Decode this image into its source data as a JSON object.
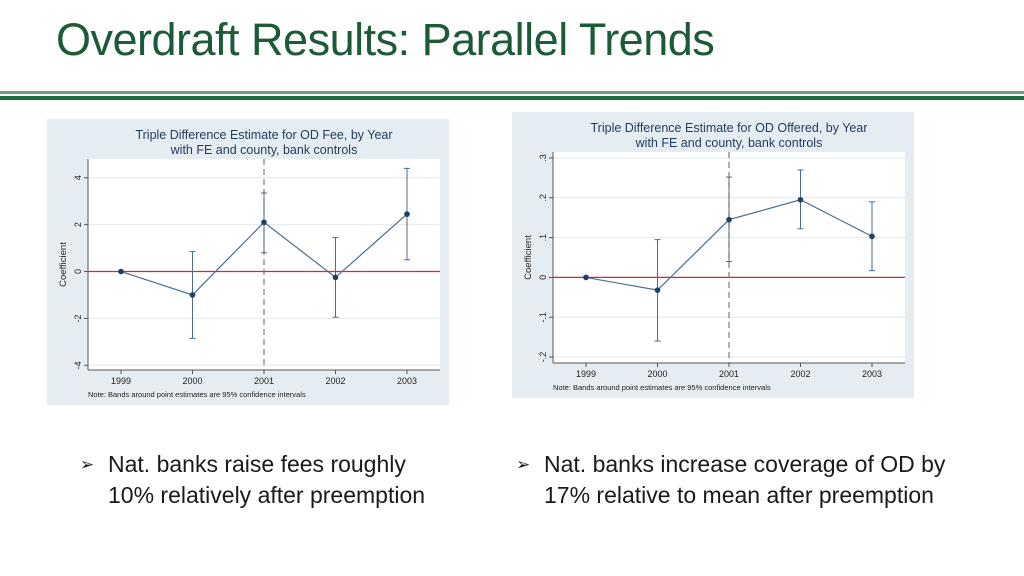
{
  "slide": {
    "title": "Overdraft Results: Parallel Trends"
  },
  "bullets": [
    {
      "marker": "➢",
      "lines": [
        "Nat. banks raise fees roughly",
        "10% relatively after preemption"
      ]
    },
    {
      "marker": "➢",
      "lines": [
        "Nat. banks increase coverage of OD by",
        "17% relative to mean after preemption"
      ]
    }
  ],
  "chart_data": [
    {
      "type": "scatter",
      "title": "Triple Difference Estimate for OD Fee, by Year",
      "subtitle": "with FE and county, bank controls",
      "xlabel": "",
      "ylabel": "Coefficient",
      "x": [
        "1999",
        "2000",
        "2001",
        "2002",
        "2003"
      ],
      "yticks": [
        "4",
        "2",
        "0",
        "-2",
        "-4"
      ],
      "ylim": [
        -4.2,
        4.8
      ],
      "series": [
        {
          "values": [
            0.0,
            -1.0,
            2.1,
            -0.25,
            2.45
          ],
          "ci_low": [
            null,
            -2.85,
            0.8,
            -1.95,
            0.5
          ],
          "ci_high": [
            null,
            0.85,
            3.35,
            1.45,
            4.4
          ]
        }
      ],
      "reference_line_y": 0,
      "vertical_marker_x": "2001",
      "note": "Note: Bands around point estimates are 95% confidence intervals",
      "colors": {
        "series": "#4a6d8c",
        "points": "#1f3f66",
        "zero_line": "#d9282a",
        "plot_bg": "#ffffff",
        "panel_bg": "#e6edf2",
        "vline": "#7a7a7a"
      }
    },
    {
      "type": "scatter",
      "title": "Triple Difference Estimate for OD Offered, by Year",
      "subtitle": "with FE and county, bank controls",
      "xlabel": "",
      "ylabel": "Coefficient",
      "x": [
        "1999",
        "2000",
        "2001",
        "2002",
        "2003"
      ],
      "yticks": [
        ".3",
        ".2",
        ".1",
        "0",
        "-.1",
        "-.2"
      ],
      "ylim": [
        -0.215,
        0.315
      ],
      "series": [
        {
          "values": [
            0.0,
            -0.032,
            0.145,
            0.195,
            0.103
          ],
          "ci_low": [
            null,
            -0.16,
            0.04,
            0.122,
            0.017
          ],
          "ci_high": [
            null,
            0.095,
            0.252,
            0.27,
            0.19
          ]
        }
      ],
      "reference_line_y": 0,
      "vertical_marker_x": "2001",
      "note": "Note: Bands around point estimates are 95% confidence intervals",
      "colors": {
        "series": "#4a6d8c",
        "points": "#1f3f66",
        "zero_line": "#d9282a",
        "plot_bg": "#ffffff",
        "panel_bg": "#e6edf2",
        "vline": "#7a7a7a"
      }
    }
  ]
}
